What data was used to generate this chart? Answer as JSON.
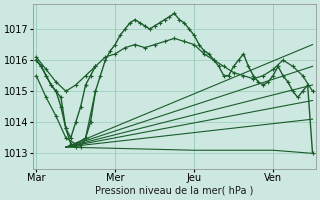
{
  "xlabel": "Pression niveau de la mer( hPa )",
  "ylim": [
    1012.5,
    1017.8
  ],
  "yticks": [
    1013,
    1014,
    1015,
    1016,
    1017
  ],
  "xtick_labels": [
    "Mar",
    "Mer",
    "Jeu",
    "Ven"
  ],
  "xtick_positions": [
    0,
    48,
    96,
    144
  ],
  "xlim": [
    -2,
    170
  ],
  "bg_color": "#cce8e0",
  "grid_color": "#99ccbb",
  "line_color": "#1a5c2a",
  "series": [
    {
      "x": [
        0,
        3,
        6,
        9,
        12,
        15,
        18,
        21,
        24,
        27,
        30,
        33,
        36,
        39,
        42,
        45,
        48,
        51,
        54,
        57,
        60,
        63,
        66,
        69,
        72,
        75,
        78,
        81,
        84,
        87,
        90,
        93,
        96,
        99,
        102,
        105,
        108,
        111,
        114,
        117,
        120,
        123,
        126,
        129,
        132,
        135,
        138,
        141,
        144,
        147,
        150,
        153,
        156,
        159,
        162,
        165,
        168
      ],
      "y": [
        1016.0,
        1015.8,
        1015.5,
        1015.2,
        1015.0,
        1014.8,
        1013.8,
        1013.3,
        1013.2,
        1013.2,
        1013.5,
        1014.0,
        1015.0,
        1015.5,
        1016.0,
        1016.3,
        1016.5,
        1016.8,
        1017.0,
        1017.2,
        1017.3,
        1017.2,
        1017.1,
        1017.0,
        1017.1,
        1017.2,
        1017.3,
        1017.4,
        1017.5,
        1017.3,
        1017.2,
        1017.0,
        1016.8,
        1016.5,
        1016.3,
        1016.2,
        1016.0,
        1015.8,
        1015.5,
        1015.5,
        1015.8,
        1016.0,
        1016.2,
        1015.8,
        1015.5,
        1015.3,
        1015.2,
        1015.3,
        1015.5,
        1015.8,
        1015.5,
        1015.3,
        1015.0,
        1014.8,
        1015.0,
        1015.2,
        1013.0
      ],
      "lw": 1.0,
      "ms": 3
    },
    {
      "x": [
        0,
        6,
        12,
        18,
        24,
        30,
        36,
        42,
        48,
        54,
        60,
        66,
        72,
        78,
        84,
        90,
        96,
        102,
        108,
        114,
        120,
        126,
        132,
        138,
        144,
        150,
        156,
        162,
        168
      ],
      "y": [
        1016.1,
        1015.7,
        1015.3,
        1015.0,
        1015.2,
        1015.5,
        1015.8,
        1016.1,
        1016.2,
        1016.4,
        1016.5,
        1016.4,
        1016.5,
        1016.6,
        1016.7,
        1016.6,
        1016.5,
        1016.2,
        1016.0,
        1015.8,
        1015.6,
        1015.5,
        1015.4,
        1015.5,
        1015.7,
        1016.0,
        1015.8,
        1015.5,
        1015.0
      ],
      "lw": 0.9,
      "ms": 3
    },
    {
      "x": [
        18,
        168
      ],
      "y": [
        1013.2,
        1016.5
      ],
      "lw": 0.8,
      "ms": 0
    },
    {
      "x": [
        18,
        168
      ],
      "y": [
        1013.2,
        1015.8
      ],
      "lw": 0.8,
      "ms": 0
    },
    {
      "x": [
        18,
        168
      ],
      "y": [
        1013.2,
        1015.2
      ],
      "lw": 0.8,
      "ms": 0
    },
    {
      "x": [
        18,
        168
      ],
      "y": [
        1013.2,
        1014.7
      ],
      "lw": 0.8,
      "ms": 0
    },
    {
      "x": [
        18,
        168
      ],
      "y": [
        1013.2,
        1014.1
      ],
      "lw": 0.8,
      "ms": 0
    },
    {
      "x": [
        18,
        96,
        144,
        168
      ],
      "y": [
        1013.2,
        1013.1,
        1013.1,
        1013.0
      ],
      "lw": 0.8,
      "ms": 0
    },
    {
      "x": [
        0,
        3,
        6,
        9,
        12,
        15,
        18,
        21,
        24,
        27,
        30,
        33,
        36
      ],
      "y": [
        1016.0,
        1015.8,
        1015.5,
        1015.2,
        1015.0,
        1014.5,
        1013.8,
        1013.5,
        1014.0,
        1014.5,
        1015.2,
        1015.5,
        1015.8
      ],
      "lw": 1.0,
      "ms": 3
    },
    {
      "x": [
        0,
        6,
        12,
        18,
        24,
        30,
        36
      ],
      "y": [
        1015.5,
        1014.8,
        1014.2,
        1013.5,
        1013.3,
        1013.5,
        1015.0
      ],
      "lw": 0.9,
      "ms": 3
    }
  ]
}
